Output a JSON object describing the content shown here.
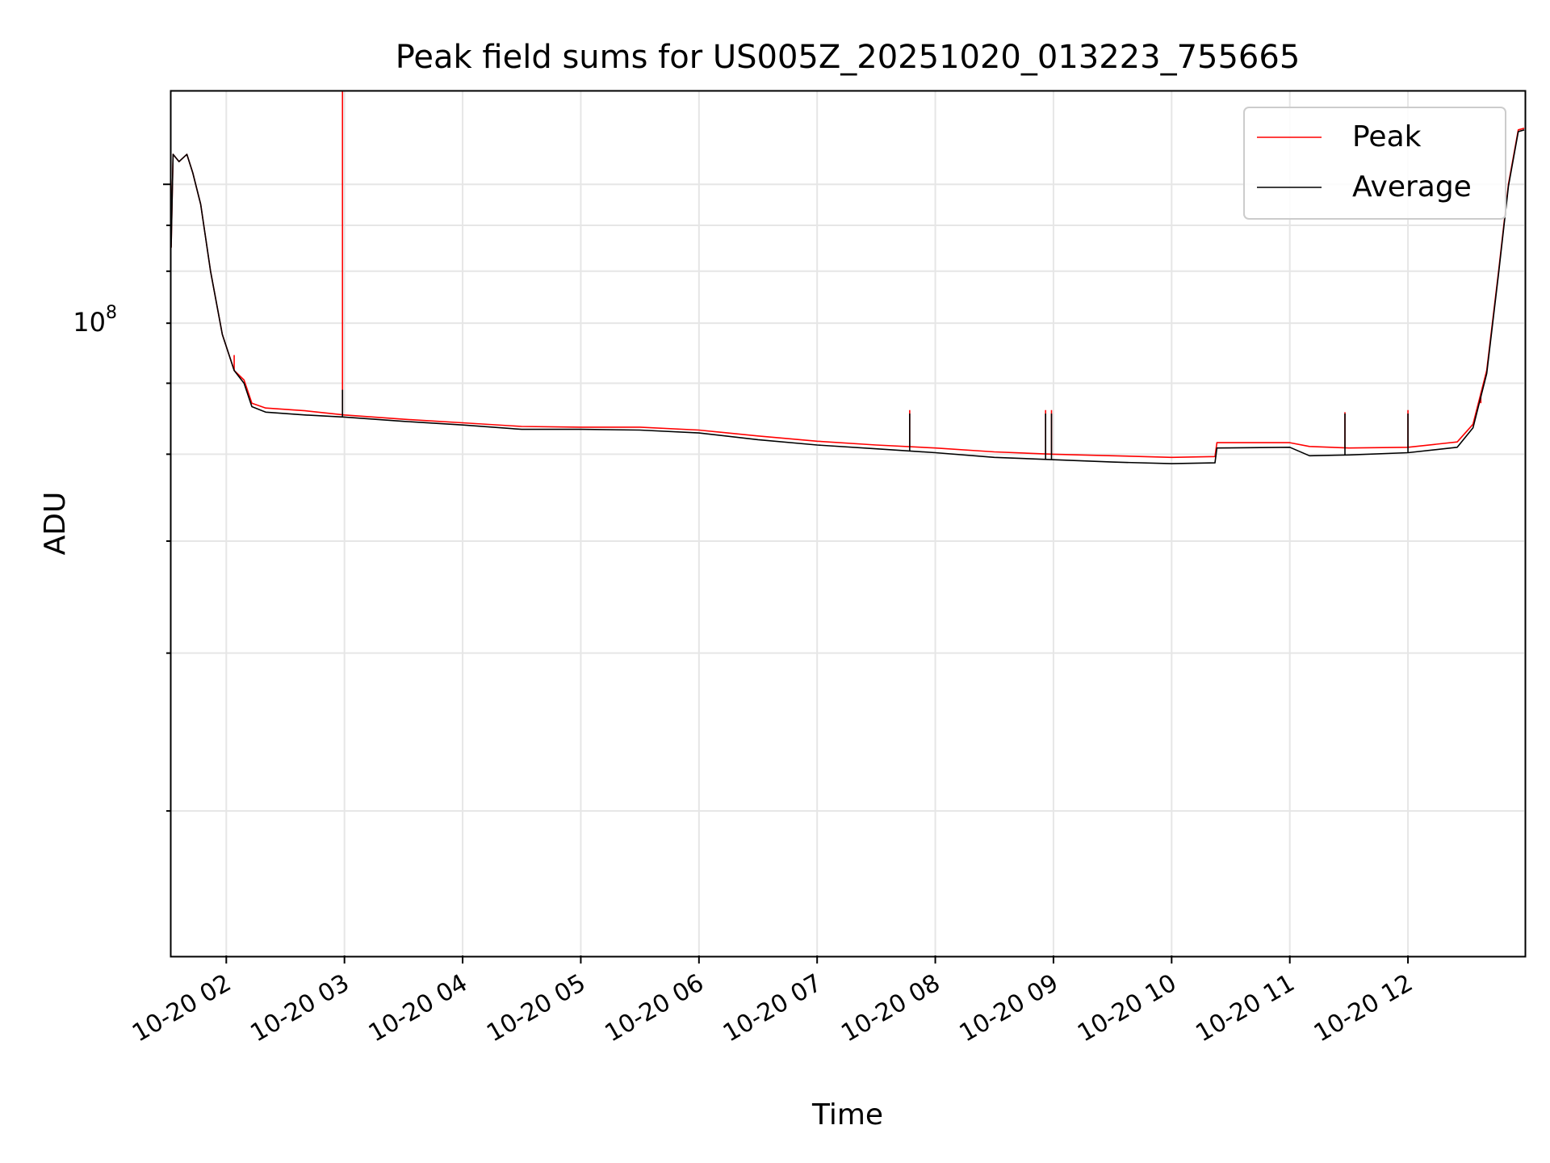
{
  "chart_data": {
    "type": "line",
    "title": "Peak field sums for US005Z_20251020_013223_755665",
    "xlabel": "Time",
    "ylabel": "ADU",
    "x_ticks": [
      "10-20 02",
      "10-20 03",
      "10-20 04",
      "10-20 05",
      "10-20 06",
      "10-20 07",
      "10-20 08",
      "10-20 09",
      "10-20 10",
      "10-20 11",
      "10-20 12"
    ],
    "y_tick_label": {
      "base": "10",
      "exponent": "8"
    },
    "y_scale": "log",
    "ylim": [
      13800000,
      127000000
    ],
    "xlim": [
      "2025-10-20 01:32",
      "2025-10-20 12:59"
    ],
    "grid": true,
    "legend_position": "top-right",
    "series": [
      {
        "name": "Peak",
        "color": "#ff0000",
        "points": [
          [
            "01:32",
            85000000
          ],
          [
            "01:33",
            108000000
          ],
          [
            "01:36",
            106000000
          ],
          [
            "01:40",
            108000000
          ],
          [
            "01:43",
            103000000
          ],
          [
            "01:47",
            95000000
          ],
          [
            "01:52",
            80000000
          ],
          [
            "01:58",
            68000000
          ],
          [
            "02:04",
            62000000
          ],
          [
            "02:09",
            60500000
          ],
          [
            "02:13",
            57000000
          ],
          [
            "02:20",
            56300000
          ],
          [
            "02:40",
            55900000
          ],
          [
            "03:00",
            55300000
          ],
          [
            "03:30",
            54700000
          ],
          [
            "04:00",
            54200000
          ],
          [
            "04:30",
            53700000
          ],
          [
            "05:00",
            53600000
          ],
          [
            "05:30",
            53600000
          ],
          [
            "06:00",
            53200000
          ],
          [
            "06:30",
            52400000
          ],
          [
            "07:00",
            51700000
          ],
          [
            "07:30",
            51200000
          ],
          [
            "08:00",
            50800000
          ],
          [
            "08:30",
            50300000
          ],
          [
            "09:00",
            50000000
          ],
          [
            "09:30",
            49800000
          ],
          [
            "10:00",
            49600000
          ],
          [
            "10:22",
            49700000
          ],
          [
            "10:23",
            51500000
          ],
          [
            "11:00",
            51500000
          ],
          [
            "11:10",
            51000000
          ],
          [
            "11:30",
            50800000
          ],
          [
            "12:00",
            50900000
          ],
          [
            "12:25",
            51600000
          ],
          [
            "12:33",
            54000000
          ],
          [
            "12:40",
            62000000
          ],
          [
            "12:46",
            80000000
          ],
          [
            "12:51",
            100000000
          ],
          [
            "12:56",
            115000000
          ],
          [
            "12:59",
            115500000
          ]
        ],
        "spikes": [
          [
            "02:59",
            127000000
          ],
          [
            "02:04",
            64500000
          ],
          [
            "07:47",
            56000000
          ],
          [
            "08:56",
            56000000
          ],
          [
            "08:59",
            56000000
          ],
          [
            "11:28",
            55700000
          ],
          [
            "12:00",
            56000000
          ],
          [
            "12:37",
            57000000
          ]
        ]
      },
      {
        "name": "Average",
        "color": "#000000",
        "points": [
          [
            "01:32",
            85000000
          ],
          [
            "01:33",
            108000000
          ],
          [
            "01:36",
            106000000
          ],
          [
            "01:40",
            108000000
          ],
          [
            "01:43",
            103000000
          ],
          [
            "01:47",
            95000000
          ],
          [
            "01:52",
            80000000
          ],
          [
            "01:58",
            68000000
          ],
          [
            "02:04",
            62000000
          ],
          [
            "02:09",
            60000000
          ],
          [
            "02:13",
            56500000
          ],
          [
            "02:20",
            55700000
          ],
          [
            "02:40",
            55300000
          ],
          [
            "03:00",
            55000000
          ],
          [
            "03:30",
            54400000
          ],
          [
            "04:00",
            53900000
          ],
          [
            "04:30",
            53300000
          ],
          [
            "05:00",
            53300000
          ],
          [
            "05:30",
            53200000
          ],
          [
            "06:00",
            52800000
          ],
          [
            "06:30",
            51900000
          ],
          [
            "07:00",
            51200000
          ],
          [
            "07:30",
            50700000
          ],
          [
            "08:00",
            50200000
          ],
          [
            "08:30",
            49600000
          ],
          [
            "09:00",
            49300000
          ],
          [
            "09:30",
            49000000
          ],
          [
            "10:00",
            48800000
          ],
          [
            "10:22",
            48900000
          ],
          [
            "10:23",
            50800000
          ],
          [
            "11:00",
            50900000
          ],
          [
            "11:10",
            49800000
          ],
          [
            "11:30",
            49900000
          ],
          [
            "12:00",
            50200000
          ],
          [
            "12:25",
            50900000
          ],
          [
            "12:33",
            53500000
          ],
          [
            "12:40",
            61500000
          ],
          [
            "12:46",
            79500000
          ],
          [
            "12:51",
            99500000
          ],
          [
            "12:56",
            114500000
          ],
          [
            "12:59",
            115000000
          ]
        ],
        "spikes": [
          [
            "02:59",
            59000000
          ],
          [
            "07:47",
            55500000
          ],
          [
            "08:56",
            55500000
          ],
          [
            "08:59",
            55500000
          ],
          [
            "11:28",
            55500000
          ],
          [
            "12:00",
            55500000
          ]
        ]
      }
    ]
  }
}
